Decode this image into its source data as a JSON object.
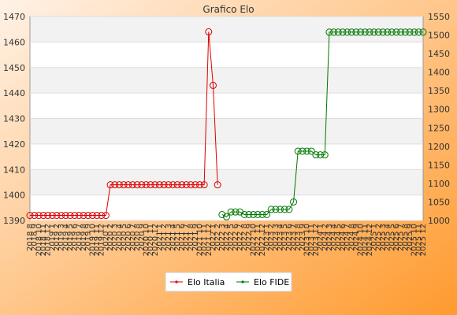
{
  "chart_data": {
    "type": "line",
    "title": "Grafico Elo",
    "x": [
      "2018 8",
      "2018 9",
      "2018 10",
      "2018 11",
      "2018 12",
      "2019 1",
      "2019 2",
      "2019 3",
      "2019 4",
      "2019 5",
      "2019 6",
      "2019 7",
      "2019 8",
      "2019 9",
      "2019 10",
      "2019 11",
      "2019 12",
      "2020 1",
      "2020 2",
      "2020 3",
      "2020 4",
      "2020 5",
      "2020 6",
      "2020 7",
      "2020 8",
      "2020 9",
      "2020 10",
      "2020 11",
      "2020 12",
      "2021 1",
      "2021 2",
      "2021 3",
      "2021 4",
      "2021 5",
      "2021 6",
      "2021 7",
      "2021 8",
      "2021 9",
      "2021 10",
      "2021 11",
      "2021 12",
      "2022 1",
      "2022 2",
      "2022 3",
      "2022 4",
      "2022 5",
      "2022 6",
      "2022 7",
      "2022 8",
      "2022 9",
      "2022 10",
      "2022 11",
      "2022 12",
      "2023 1",
      "2023 2",
      "2023 3",
      "2023 4",
      "2023 5",
      "2023 6",
      "2023 7",
      "2023 8",
      "2023 9",
      "2023 10",
      "2023 11",
      "2023 12",
      "2024 1",
      "2024 2",
      "2024 3",
      "2024 4",
      "2024 5",
      "2024 6",
      "2024 7",
      "2024 8",
      "2024 9",
      "2024 10",
      "2024 11",
      "2024 12",
      "2025 1",
      "2025 2",
      "2025 3",
      "2025 4",
      "2025 5",
      "2025 6",
      "2025 7",
      "2025 8",
      "2025 9",
      "2025 10",
      "2025 11",
      "2025 12"
    ],
    "series": [
      {
        "name": "Elo Italia",
        "axis": "left",
        "color": "#dd0000",
        "values": [
          1392,
          1392,
          1392,
          1392,
          1392,
          1392,
          1392,
          1392,
          1392,
          1392,
          1392,
          1392,
          1392,
          1392,
          1392,
          1392,
          1392,
          1392,
          1404,
          1404,
          1404,
          1404,
          1404,
          1404,
          1404,
          1404,
          1404,
          1404,
          1404,
          1404,
          1404,
          1404,
          1404,
          1404,
          1404,
          1404,
          1404,
          1404,
          1404,
          1404,
          1464,
          1443,
          1404,
          null,
          null,
          null,
          null,
          null,
          null,
          null,
          null,
          null,
          null,
          null,
          null,
          null,
          null,
          null,
          null,
          null,
          null,
          null,
          null,
          null,
          null,
          null,
          null,
          null,
          null,
          null,
          null,
          null,
          null,
          null,
          null,
          null,
          null,
          null,
          null,
          null,
          null,
          null,
          null,
          null,
          null,
          null,
          null,
          null,
          null
        ]
      },
      {
        "name": "Elo FIDE",
        "axis": "right",
        "color": "#007700",
        "values": [
          null,
          null,
          null,
          null,
          null,
          null,
          null,
          null,
          null,
          null,
          null,
          null,
          null,
          null,
          null,
          null,
          null,
          null,
          null,
          null,
          null,
          null,
          null,
          null,
          null,
          null,
          null,
          null,
          null,
          null,
          null,
          null,
          null,
          null,
          null,
          null,
          null,
          null,
          null,
          null,
          null,
          null,
          null,
          1016,
          1010,
          1023,
          1023,
          1023,
          1016,
          1016,
          1016,
          1016,
          1016,
          1016,
          1030,
          1030,
          1030,
          1030,
          1030,
          1050,
          1187,
          1187,
          1187,
          1187,
          1177,
          1177,
          1177,
          1508,
          1508,
          1508,
          1508,
          1508,
          1508,
          1508,
          1508,
          1508,
          1508,
          1508,
          1508,
          1508,
          1508,
          1508,
          1508,
          1508,
          1508,
          1508,
          1508,
          1508,
          1508
        ]
      }
    ],
    "y_left": {
      "min": 1390,
      "max": 1470,
      "ticks": [
        "1390",
        "1400",
        "1410",
        "1420",
        "1430",
        "1440",
        "1450",
        "1460",
        "1470"
      ]
    },
    "y_right": {
      "min": 1000,
      "max": 1550,
      "ticks": [
        "1000",
        "1050",
        "1100",
        "1150",
        "1200",
        "1250",
        "1300",
        "1350",
        "1400",
        "1450",
        "1500",
        "1550"
      ]
    },
    "grid": true,
    "legend_position": "bottom",
    "background": {
      "top": "#fff2e6",
      "bottom": "#ff9a2e"
    },
    "band_colors": [
      "#f2f2f2",
      "#ffffff"
    ]
  }
}
